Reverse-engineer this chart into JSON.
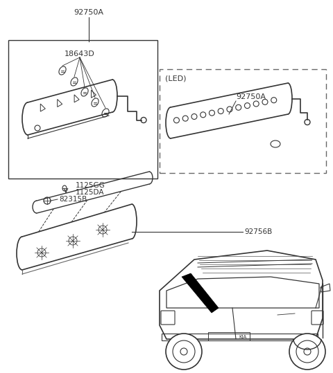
{
  "bg_color": "#ffffff",
  "line_color": "#333333",
  "text_color": "#333333",
  "labels": {
    "92750A_top": "92750A",
    "18643D": "18643D",
    "1125GG": "1125GG",
    "1125DA": "1125DA",
    "82315B": "82315B",
    "92756B": "92756B",
    "92750A_led": "92750A",
    "LED": "(LED)"
  },
  "figsize": [
    4.8,
    5.39
  ],
  "dpi": 100
}
